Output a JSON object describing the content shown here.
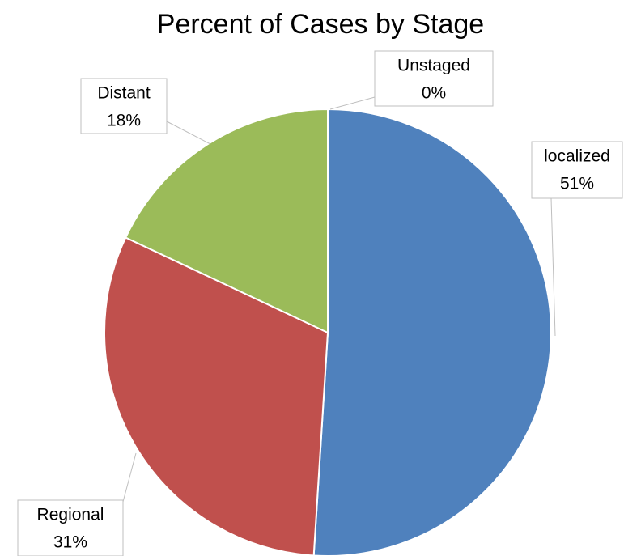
{
  "chart_data": {
    "type": "pie",
    "title": "Percent of Cases by Stage",
    "categories": [
      "localized",
      "Regional",
      "Distant",
      "Unstaged"
    ],
    "values": [
      51,
      31,
      18,
      0
    ],
    "value_labels": [
      "51%",
      "31%",
      "18%",
      "0%"
    ],
    "colors": [
      "#4f81bd",
      "#c0504d",
      "#9bbb59",
      "#8064a2"
    ]
  }
}
